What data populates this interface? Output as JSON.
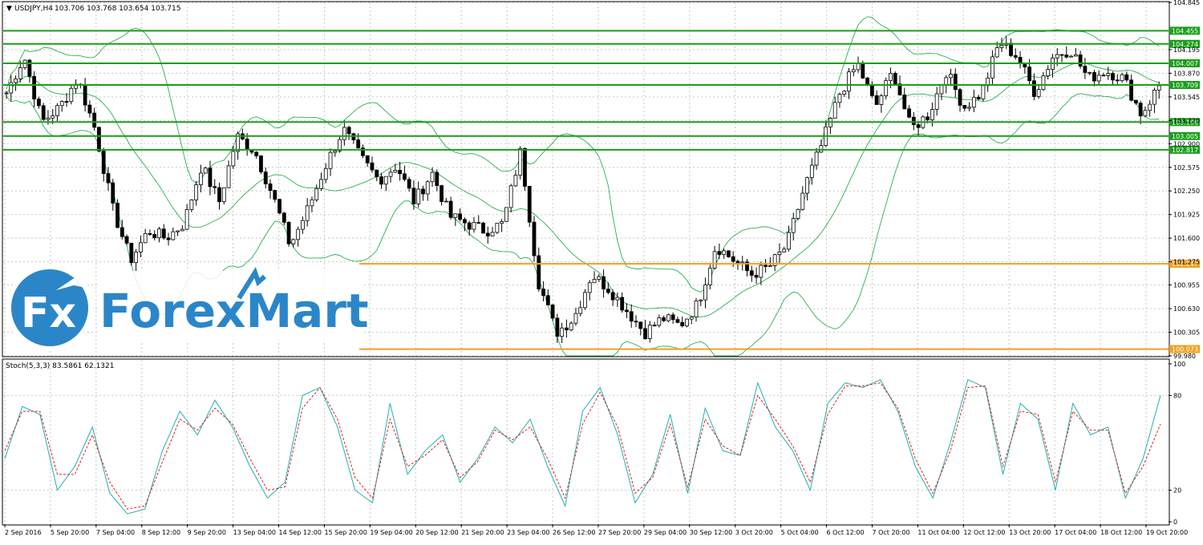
{
  "chart_data": [
    {
      "type": "candlestick",
      "title": "USDJPY,H4",
      "header_values": "103.706 103.768 103.654 103.715",
      "ylim": [
        99.98,
        104.845
      ],
      "y_ticks": [
        "104.845",
        "104.195",
        "103.870",
        "103.545",
        "103.220",
        "102.900",
        "102.575",
        "102.250",
        "101.925",
        "101.600",
        "101.275",
        "100.955",
        "100.630",
        "100.305",
        "99.980"
      ],
      "x_ticks": [
        "2 Sep 2016",
        "5 Sep 20:00",
        "7 Sep 04:00",
        "8 Sep 12:00",
        "9 Sep 20:00",
        "13 Sep 04:00",
        "14 Sep 12:00",
        "15 Sep 20:00",
        "19 Sep 04:00",
        "20 Sep 12:00",
        "21 Sep 20:00",
        "23 Sep 04:00",
        "26 Sep 12:00",
        "27 Sep 20:00",
        "29 Sep 04:00",
        "30 Sep 12:00",
        "3 Oct 20:00",
        "5 Oct 04:00",
        "6 Oct 12:00",
        "7 Oct 20:00",
        "11 Oct 04:00",
        "12 Oct 12:00",
        "13 Oct 20:00",
        "17 Oct 04:00",
        "18 Oct 12:00",
        "19 Oct 20:00"
      ],
      "levels": [
        {
          "value": 104.455,
          "label": "104.455",
          "color": "#1a9e1a"
        },
        {
          "value": 104.274,
          "label": "104.274",
          "color": "#1a9e1a"
        },
        {
          "value": 104.007,
          "label": "104.007",
          "color": "#1a9e1a"
        },
        {
          "value": 103.709,
          "label": "103.709",
          "color": "#1a9e1a"
        },
        {
          "value": 103.198,
          "label": "103.198",
          "color": "#1a9e1a"
        },
        {
          "value": 103.005,
          "label": "103.005",
          "color": "#1a9e1a"
        },
        {
          "value": 102.817,
          "label": "102.817",
          "color": "#1a9e1a"
        },
        {
          "value": 101.247,
          "label": "101.247",
          "color": "#f0a020"
        },
        {
          "value": 100.073,
          "label": "100.073",
          "color": "#f0a020"
        }
      ],
      "close_path": [
        103.6,
        104.1,
        103.2,
        103.4,
        103.8,
        103.1,
        102.0,
        101.3,
        101.7,
        101.6,
        101.8,
        102.6,
        102.1,
        103.0,
        102.8,
        102.2,
        101.5,
        102.0,
        102.6,
        103.1,
        102.7,
        102.4,
        102.6,
        102.1,
        102.5,
        101.9,
        101.8,
        101.7,
        101.8,
        102.8,
        101.0,
        100.3,
        100.5,
        101.1,
        100.9,
        100.6,
        100.3,
        100.5,
        100.4,
        100.7,
        101.5,
        101.3,
        101.1,
        101.2,
        101.5,
        102.3,
        102.9,
        103.6,
        104.0,
        103.4,
        103.9,
        103.1,
        103.3,
        103.9,
        103.4,
        103.6,
        104.3,
        104.1,
        103.6,
        104.1,
        104.2,
        103.8,
        103.9,
        103.8,
        103.3,
        103.7
      ],
      "series": [
        {
          "name": "",
          "role": "bollinger-middle",
          "color": "#28b050"
        },
        {
          "name": "",
          "role": "bollinger-upper",
          "color": "#28b050"
        },
        {
          "name": "",
          "role": "bollinger-lower",
          "color": "#28b050"
        }
      ]
    },
    {
      "type": "line",
      "title": "Stoch(5,3,3) 83.5861 62.1321",
      "ylim": [
        0,
        100
      ],
      "y_ticks": [
        "100",
        "80",
        "20",
        "0"
      ],
      "series": [
        {
          "name": "",
          "role": "main",
          "color": "#20b0b0",
          "values": [
            40,
            73,
            68,
            20,
            35,
            60,
            18,
            5,
            8,
            45,
            70,
            55,
            77,
            60,
            35,
            15,
            25,
            80,
            85,
            60,
            20,
            12,
            75,
            30,
            45,
            55,
            25,
            40,
            60,
            50,
            65,
            35,
            10,
            70,
            85,
            55,
            12,
            30,
            68,
            18,
            72,
            45,
            42,
            88,
            60,
            45,
            20,
            75,
            88,
            85,
            90,
            70,
            35,
            15,
            50,
            90,
            85,
            30,
            75,
            65,
            20,
            75,
            55,
            60,
            15,
            40,
            80
          ]
        },
        {
          "name": "",
          "role": "signal",
          "color": "#e02020",
          "values": [
            45,
            70,
            70,
            30,
            30,
            55,
            25,
            8,
            10,
            38,
            65,
            58,
            72,
            62,
            40,
            20,
            22,
            72,
            85,
            65,
            28,
            15,
            65,
            35,
            42,
            52,
            28,
            38,
            58,
            52,
            60,
            40,
            15,
            62,
            82,
            60,
            18,
            28,
            62,
            22,
            65,
            48,
            42,
            80,
            65,
            48,
            25,
            68,
            86,
            86,
            88,
            72,
            40,
            18,
            45,
            85,
            86,
            35,
            70,
            68,
            25,
            70,
            58,
            58,
            18,
            35,
            62
          ]
        }
      ]
    }
  ],
  "watermark": {
    "text": "ForexMart",
    "brand_color": "#2b86c8"
  }
}
